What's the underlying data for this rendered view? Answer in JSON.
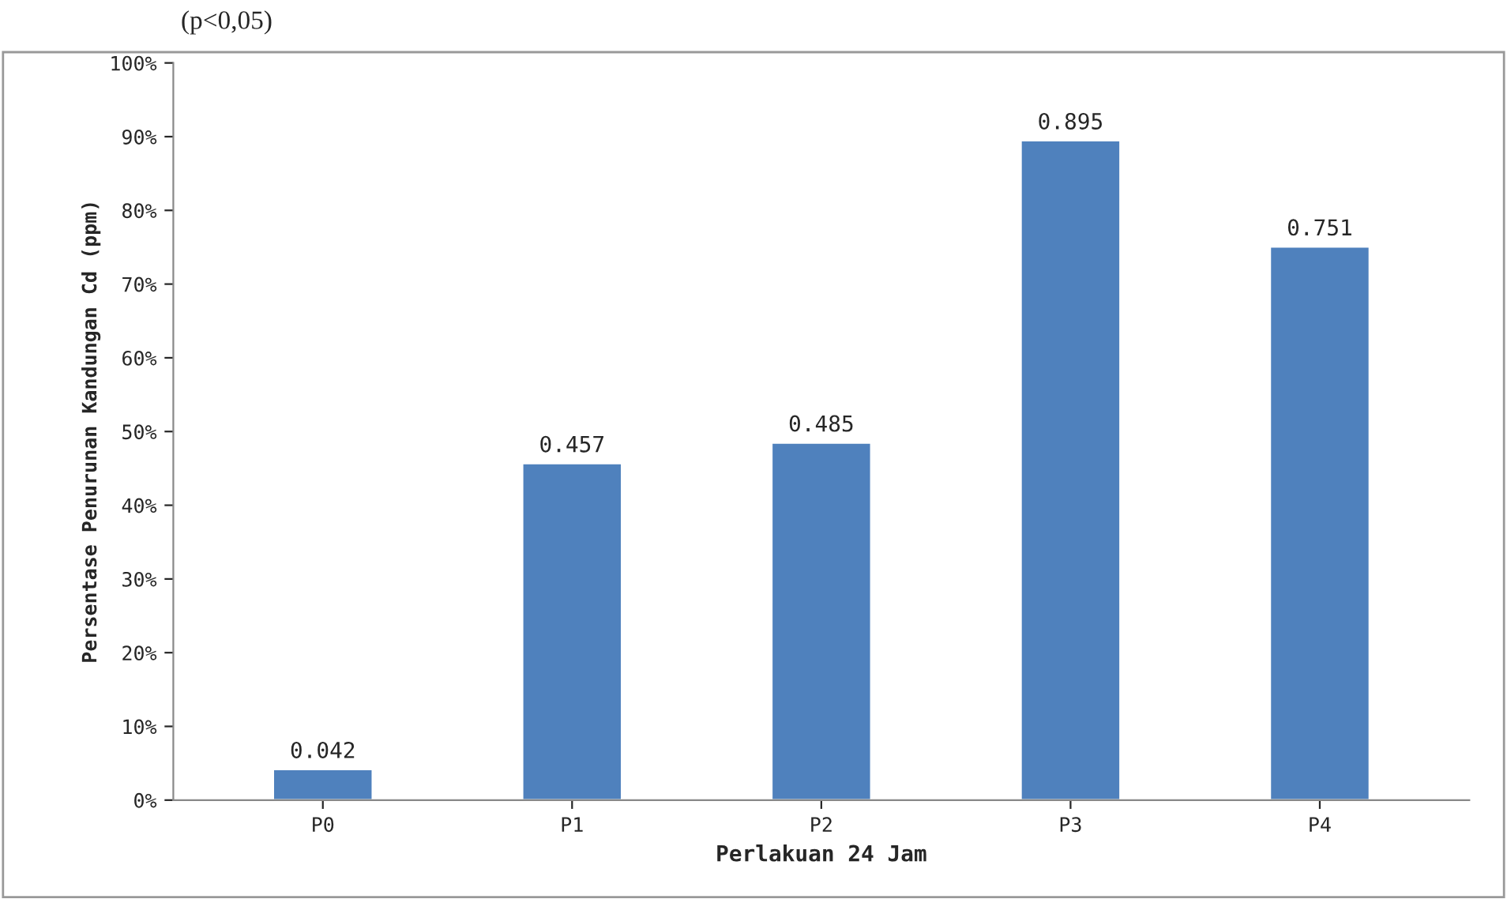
{
  "chart_data": {
    "type": "bar",
    "xlabel": "Perlakuan 24 Jam",
    "ylabel": "Persentase Penurunan Kandungan Cd (ppm)",
    "annotations": [
      "(p<0,05)"
    ],
    "categories": [
      "P0",
      "P1",
      "P2",
      "P3",
      "P4"
    ],
    "values": [
      0.042,
      0.457,
      0.485,
      0.895,
      0.751
    ],
    "color": "#4f81bd",
    "data_labels": true,
    "ylim": [
      0,
      1
    ],
    "yticks": [
      {
        "value": 0,
        "label": "0%"
      },
      {
        "value": 0.1,
        "label": "10%"
      },
      {
        "value": 0.2,
        "label": "20%"
      },
      {
        "value": 0.3,
        "label": "30%"
      },
      {
        "value": 0.4,
        "label": "40%"
      },
      {
        "value": 0.5,
        "label": "50%"
      },
      {
        "value": 0.6,
        "label": "60%"
      },
      {
        "value": 0.7,
        "label": "70%"
      },
      {
        "value": 0.8,
        "label": "80%"
      },
      {
        "value": 0.9,
        "label": "90%"
      },
      {
        "value": 1,
        "label": "100%"
      }
    ],
    "grid": false,
    "legend": false
  }
}
